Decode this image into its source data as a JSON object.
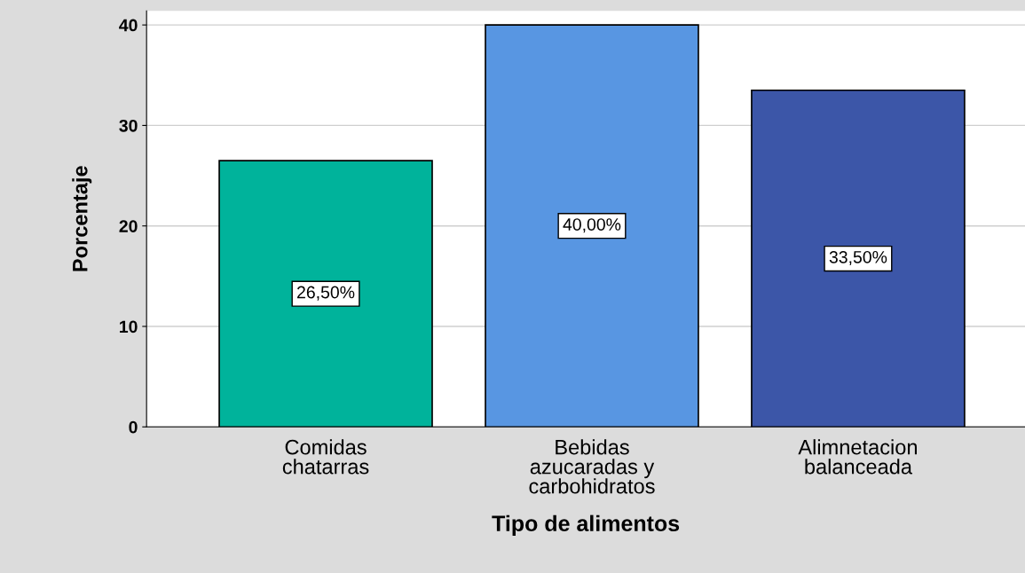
{
  "chart_data": {
    "type": "bar",
    "xlabel": "Tipo de alimentos",
    "ylabel": "Porcentaje",
    "categories": [
      "Comidas\nchatarras",
      "Bebidas\nazucaradas y\ncarbohidratos",
      "Alimnetacion\nbalanceada"
    ],
    "values": [
      26.5,
      40.0,
      33.5
    ],
    "colors": [
      "#00b39b",
      "#5896e2",
      "#3c56a8"
    ],
    "value_labels": [
      "26,50%",
      "40,00%",
      "33,50%"
    ],
    "ylim": [
      0,
      41.4
    ],
    "yticks": [
      0,
      10,
      20,
      30,
      40
    ],
    "grid": "y",
    "legend": false
  }
}
